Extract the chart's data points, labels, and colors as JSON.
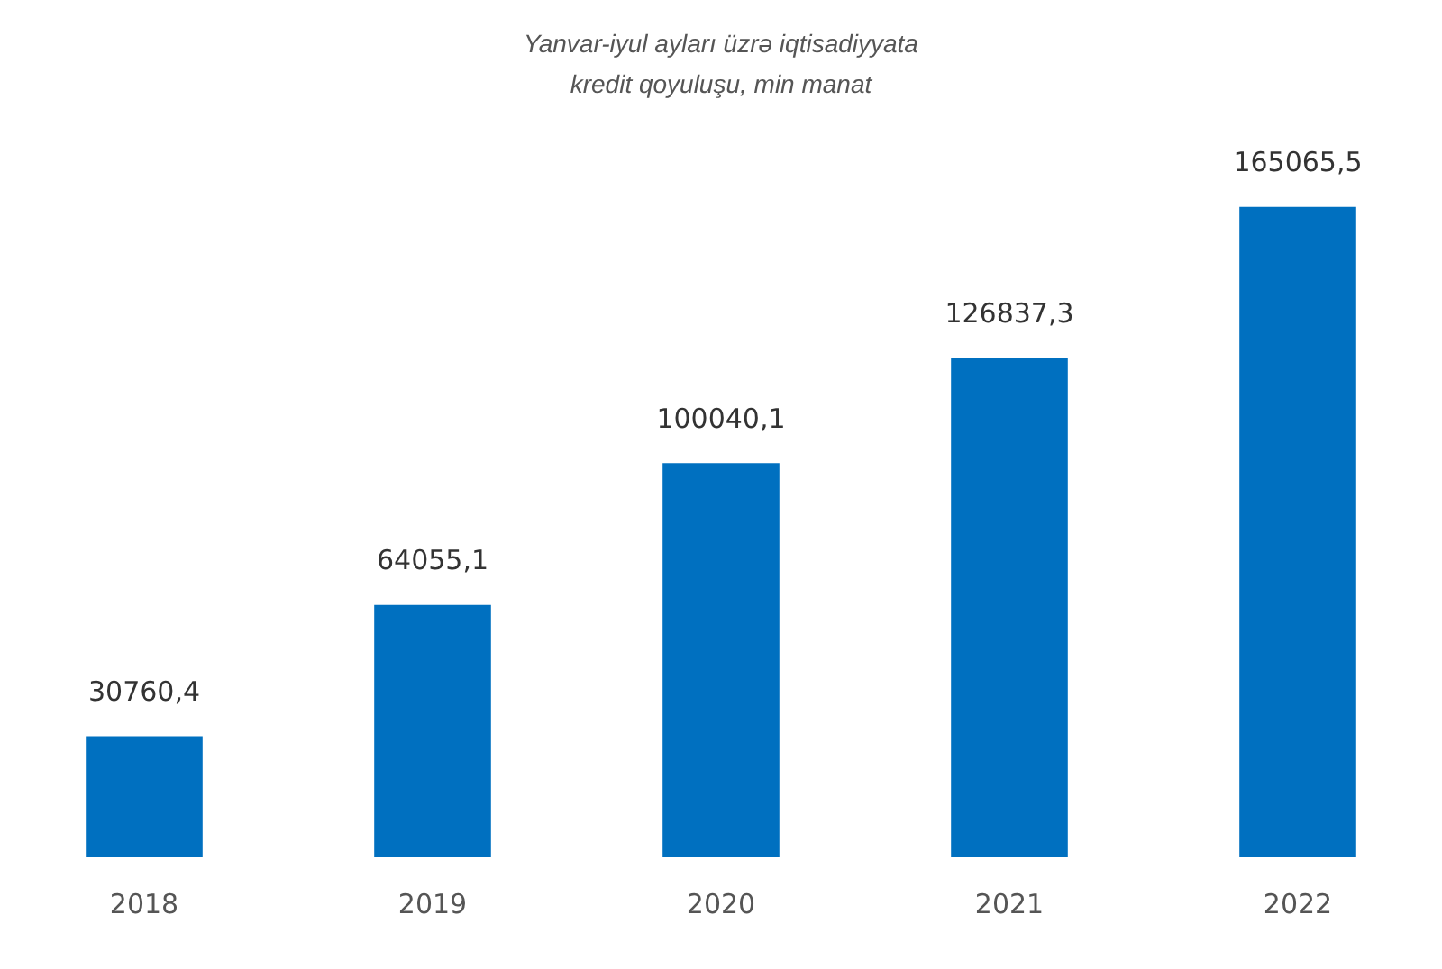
{
  "chart_data": {
    "type": "bar",
    "title": "Yanvar-iyul ayları üzrə iqtisadiyyata\nkredit qoyuluşu, min manat",
    "categories": [
      "2018",
      "2019",
      "2020",
      "2021",
      "2022"
    ],
    "values": [
      30760.4,
      64055.1,
      100040.1,
      126837.3,
      165065.5
    ],
    "value_labels": [
      "30760,4",
      "64055,1",
      "100040,1",
      "126837,3",
      "165065,5"
    ],
    "color": "#0070c0",
    "grid": false,
    "legend": false,
    "tick_labels": "x"
  }
}
